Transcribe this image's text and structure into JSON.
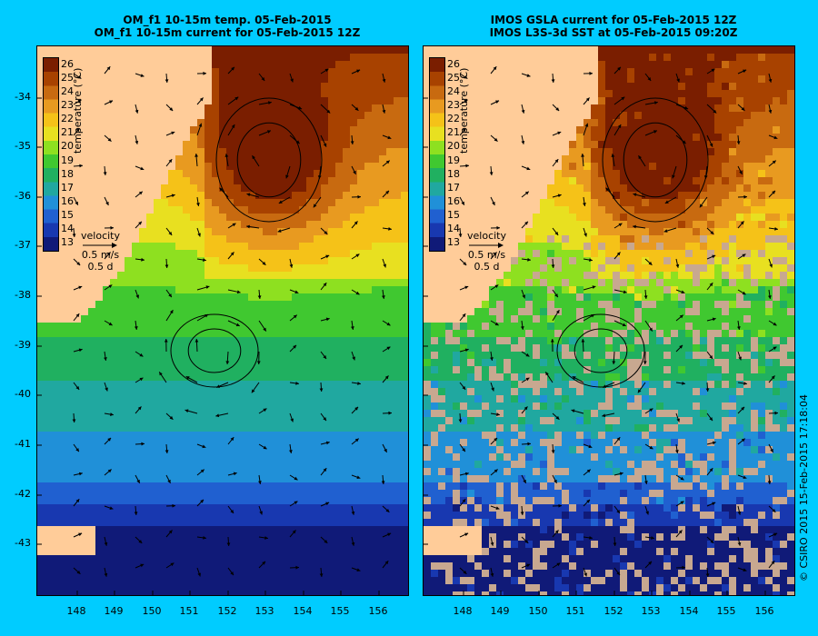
{
  "left_panel": {
    "title_line1": "OM_f1 10-15m temp. 05-Feb-2015",
    "title_line2": "OM_f1 10-15m current for 05-Feb-2015 12Z"
  },
  "right_panel": {
    "title_line1": "IMOS GSLA current for 05-Feb-2015 12Z",
    "title_line2": "IMOS L3S-3d SST at 05-Feb-2015 09:20Z"
  },
  "colorbar": {
    "title": "temperature (°C)",
    "ticks": [
      "26",
      "25",
      "24",
      "23",
      "22",
      "21",
      "20",
      "19",
      "18",
      "17",
      "16",
      "15",
      "14",
      "13"
    ],
    "colors": [
      "#7a1e00",
      "#a84200",
      "#c86a10",
      "#e89a20",
      "#f5c218",
      "#e8e020",
      "#8ee020",
      "#40c830",
      "#20b060",
      "#20a8a0",
      "#2090d8",
      "#2060d0",
      "#1838b0",
      "#101a78"
    ]
  },
  "velocity_legend": {
    "label": "velocity",
    "speed": "0.5 m/s",
    "duration": "0.5 d"
  },
  "y_axis_ticks": [
    "-34",
    "-35",
    "-36",
    "-37",
    "-38",
    "-39",
    "-40",
    "-41",
    "-42",
    "-43"
  ],
  "x_axis_ticks": [
    "148",
    "149",
    "150",
    "151",
    "152",
    "153",
    "154",
    "155",
    "156"
  ],
  "credit": "© CSIRO 2015   15-Feb-2015 17:18:04",
  "colors": {
    "land": "#ffcc99",
    "background": "#00ccff",
    "cloud_gray": "#c8a890"
  }
}
